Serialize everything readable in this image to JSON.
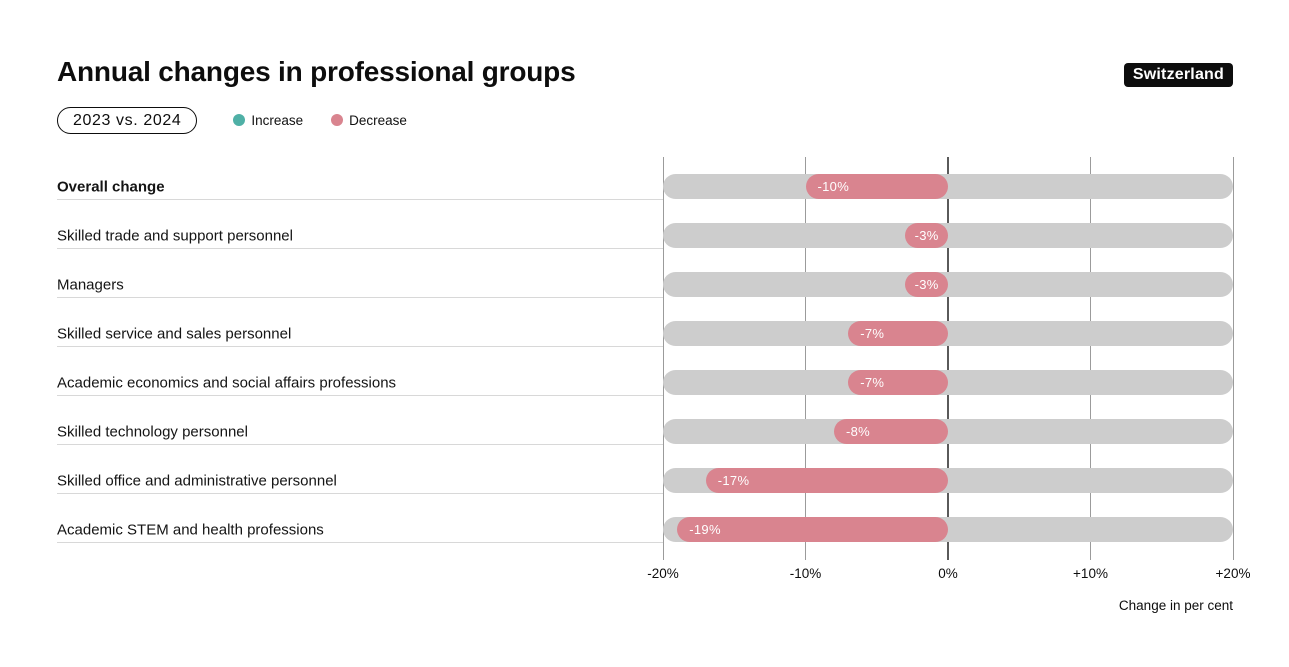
{
  "header": {
    "title": "Annual changes in professional groups",
    "period_badge": "2023 vs. 2024",
    "country_badge": "Switzerland"
  },
  "chart_data": {
    "type": "bar",
    "orientation": "horizontal",
    "title": "Annual changes in professional groups",
    "subtitle": "2023 vs. 2024",
    "categories": [
      "Overall change",
      "Skilled trade and support personnel",
      "Managers",
      "Skilled service and sales personnel",
      "Academic economics and social affairs professions",
      "Skilled technology personnel",
      "Skilled office and administrative personnel",
      "Academic STEM and health professions"
    ],
    "values": [
      -10,
      -3,
      -3,
      -7,
      -7,
      -8,
      -17,
      -19
    ],
    "value_labels": [
      "-10%",
      "-3%",
      "-3%",
      "-7%",
      "-7%",
      "-8%",
      "-17%",
      "-19%"
    ],
    "emphasized_category_index": 0,
    "xlim": [
      -20,
      20
    ],
    "x_ticks": [
      "-20%",
      "-10%",
      "0%",
      "+10%",
      "+20%"
    ],
    "x_tick_values": [
      -20,
      -10,
      0,
      10,
      20
    ],
    "xlabel": "Change in per cent",
    "grid": "vertical",
    "legend_position": "top",
    "legend": [
      {
        "label": "Increase",
        "color": "#4FB0A6"
      },
      {
        "label": "Decrease",
        "color": "#D9848F"
      }
    ],
    "colors": {
      "increase": "#4FB0A6",
      "decrease": "#D9848F",
      "track": "#CDCDCD",
      "grid_line": "#9B9B9B",
      "zero_line": "#5A5A5A",
      "label_rule": "#D8D8D8",
      "badge_bg": "#0D0D0D",
      "value_text": "#FFFFFF"
    }
  }
}
